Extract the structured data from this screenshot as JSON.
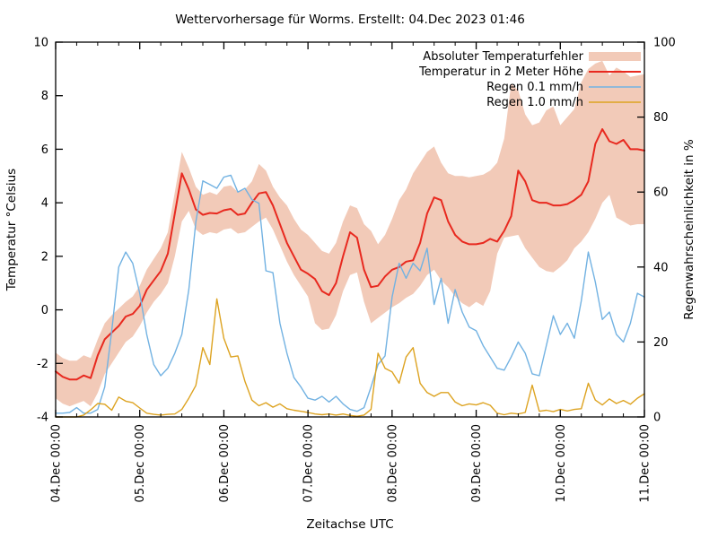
{
  "chart_data": {
    "type": "line",
    "title": "Wettervorhersage für Worms. Erstellt: 04.Dec 2023 01:46",
    "x_axis": {
      "label": "Zeitachse UTC",
      "total_hours": 168,
      "minor_tick_hours": 6,
      "tick_labels": [
        "04.Dec 00:00",
        "05.Dec 00:00",
        "06.Dec 00:00",
        "07.Dec 00:00",
        "08.Dec 00:00",
        "09.Dec 00:00",
        "10.Dec 00:00",
        "11.Dec 00:00"
      ]
    },
    "y_left": {
      "label": "Temperatur °Celsius",
      "min": -4,
      "max": 10,
      "ticks": [
        -4,
        -2,
        0,
        2,
        4,
        6,
        8,
        10
      ]
    },
    "y_right": {
      "label": "Regenwahrscheinlichkeit in %",
      "min": 0,
      "max": 100,
      "ticks": [
        0,
        20,
        40,
        60,
        80,
        100
      ]
    },
    "legend_position": "top-right",
    "grid": false,
    "step_hours": 2,
    "series": [
      {
        "name": "Absoluter Temperaturfehler",
        "type": "band",
        "axis": "left",
        "color": "#f2cab8",
        "hi": [
          -1.6,
          -1.8,
          -1.9,
          -1.9,
          -1.7,
          -1.8,
          -1.1,
          -0.5,
          -0.2,
          0.05,
          0.3,
          0.5,
          0.9,
          1.5,
          1.9,
          2.3,
          2.9,
          4.4,
          5.9,
          5.3,
          4.6,
          4.3,
          4.4,
          4.3,
          4.6,
          4.65,
          4.4,
          4.5,
          4.8,
          5.45,
          5.2,
          4.6,
          4.2,
          3.9,
          3.4,
          3.0,
          2.8,
          2.5,
          2.2,
          2.1,
          2.5,
          3.3,
          3.9,
          3.8,
          3.2,
          2.95,
          2.45,
          2.8,
          3.4,
          4.1,
          4.5,
          5.1,
          5.5,
          5.9,
          6.1,
          5.5,
          5.1,
          5.0,
          5.0,
          4.95,
          5.0,
          5.05,
          5.2,
          5.5,
          6.4,
          8.45,
          8.2,
          7.3,
          6.9,
          7.0,
          7.45,
          7.6,
          6.9,
          7.2,
          7.5,
          8.5,
          9.0,
          9.2,
          9.3,
          8.75,
          9.05,
          8.9,
          8.7,
          8.75,
          8.8
        ],
        "lo": [
          -3.3,
          -3.5,
          -3.6,
          -3.5,
          -3.4,
          -3.6,
          -3.1,
          -2.4,
          -2.0,
          -1.6,
          -1.2,
          -1.0,
          -0.6,
          -0.1,
          0.3,
          0.6,
          1.0,
          2.0,
          3.3,
          3.7,
          3.0,
          2.8,
          2.9,
          2.85,
          3.0,
          3.05,
          2.85,
          2.9,
          3.1,
          3.3,
          3.45,
          3.0,
          2.4,
          1.8,
          1.3,
          0.9,
          0.5,
          -0.5,
          -0.75,
          -0.7,
          -0.2,
          0.7,
          1.3,
          1.4,
          0.3,
          -0.5,
          -0.3,
          -0.1,
          0.1,
          0.25,
          0.45,
          0.6,
          0.9,
          1.3,
          1.5,
          1.1,
          0.85,
          0.5,
          0.25,
          0.1,
          0.3,
          0.15,
          0.7,
          2.1,
          2.7,
          2.75,
          2.8,
          2.3,
          1.95,
          1.6,
          1.45,
          1.4,
          1.6,
          1.85,
          2.3,
          2.55,
          2.9,
          3.4,
          4.0,
          4.3,
          3.45,
          3.3,
          3.15,
          3.2,
          3.2
        ]
      },
      {
        "name": "Temperatur in 2 Meter Höhe",
        "type": "line",
        "axis": "left",
        "color": "#e8291f",
        "values": [
          -2.3,
          -2.5,
          -2.6,
          -2.6,
          -2.45,
          -2.55,
          -1.7,
          -1.1,
          -0.85,
          -0.6,
          -0.25,
          -0.15,
          0.15,
          0.75,
          1.1,
          1.45,
          2.1,
          3.6,
          5.1,
          4.5,
          3.75,
          3.55,
          3.62,
          3.6,
          3.72,
          3.77,
          3.55,
          3.6,
          4.0,
          4.35,
          4.4,
          3.9,
          3.2,
          2.5,
          2.0,
          1.5,
          1.35,
          1.15,
          0.7,
          0.55,
          1.0,
          2.0,
          2.9,
          2.7,
          1.5,
          0.85,
          0.9,
          1.25,
          1.5,
          1.6,
          1.8,
          1.85,
          2.5,
          3.6,
          4.2,
          4.1,
          3.3,
          2.8,
          2.55,
          2.45,
          2.45,
          2.5,
          2.65,
          2.55,
          2.95,
          3.5,
          5.2,
          4.8,
          4.1,
          4.0,
          4.0,
          3.9,
          3.9,
          3.95,
          4.1,
          4.3,
          4.8,
          6.2,
          6.75,
          6.3,
          6.2,
          6.35,
          6.0,
          6.0,
          5.95
        ]
      },
      {
        "name": "Regen 0.1 mm/h",
        "type": "line",
        "axis": "right",
        "color": "#72b2e2",
        "values": [
          1,
          1,
          1.2,
          2.5,
          1,
          1,
          2,
          8,
          23,
          40,
          44,
          41,
          33,
          22,
          14,
          11,
          13,
          17,
          22,
          34,
          52,
          63,
          62,
          61,
          64,
          64.5,
          60,
          61,
          58,
          57,
          39,
          38.5,
          25,
          17,
          10.5,
          8,
          5,
          4.5,
          5.5,
          4,
          5.5,
          3.5,
          2,
          1.5,
          2.5,
          8,
          14,
          16.3,
          32,
          41,
          37,
          41,
          39,
          45,
          30,
          37,
          25,
          34,
          28,
          24,
          23,
          19,
          16,
          13,
          12.5,
          16,
          20,
          17,
          11.5,
          11,
          19,
          27,
          22,
          25,
          21,
          31,
          44,
          36,
          26,
          28,
          22,
          20,
          25,
          33,
          32
        ]
      },
      {
        "name": "Regen 1.0 mm/h",
        "type": "line",
        "axis": "right",
        "color": "#dda321",
        "values": [
          0,
          0,
          0,
          0,
          0.5,
          1.9,
          3.6,
          3.4,
          1.8,
          5.3,
          4.2,
          3.8,
          2.4,
          1.0,
          0.7,
          0.5,
          0.7,
          0.8,
          2.0,
          5.0,
          8.4,
          18.5,
          14,
          31.5,
          21,
          16,
          16.3,
          9.5,
          4.5,
          3.0,
          3.8,
          2.6,
          3.5,
          2.2,
          1.8,
          1.5,
          1.2,
          0.8,
          0.6,
          0.8,
          0.5,
          0.8,
          0.4,
          0.2,
          0.5,
          2.0,
          17,
          13,
          12,
          9,
          16,
          18.5,
          9,
          6.5,
          5.5,
          6.5,
          6.5,
          4.0,
          3.0,
          3.5,
          3.2,
          3.8,
          3.1,
          1.0,
          0.6,
          1.0,
          0.8,
          1.2,
          8.5,
          1.5,
          1.8,
          1.4,
          2.0,
          1.6,
          2.0,
          2.2,
          9.0,
          4.5,
          3.2,
          4.8,
          3.6,
          4.4,
          3.4,
          5.0,
          6.2
        ]
      }
    ]
  }
}
